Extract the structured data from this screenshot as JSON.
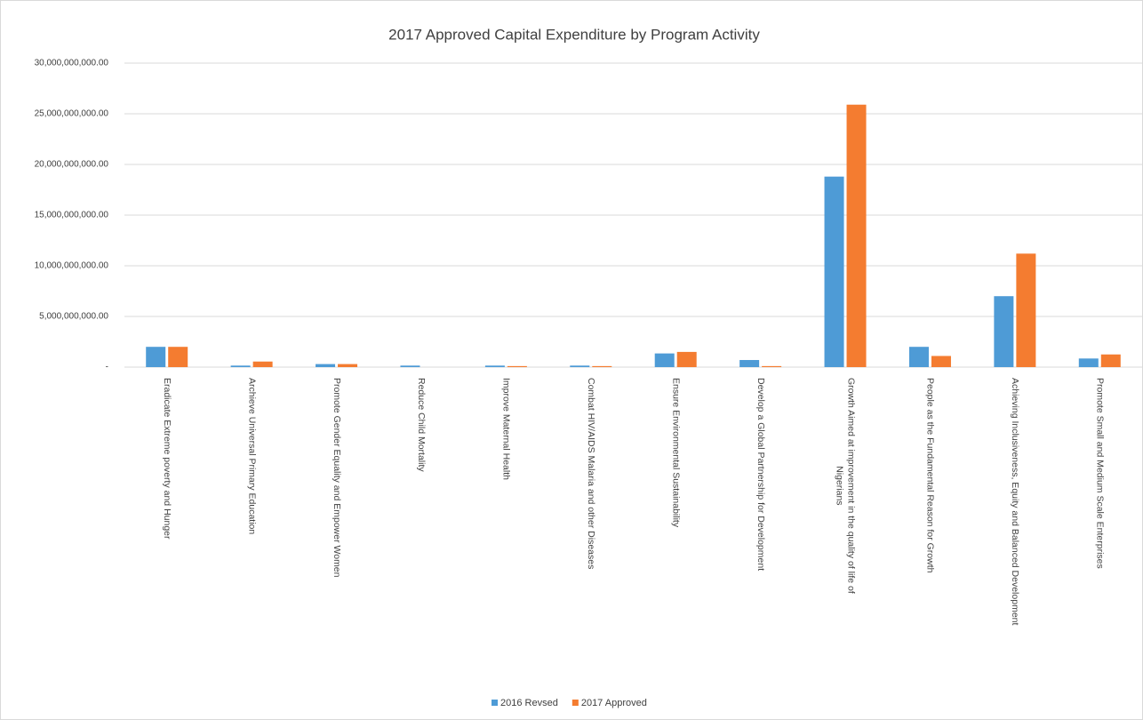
{
  "chart_data": {
    "type": "bar",
    "title": "2017 Approved Capital Expenditure by Program Activity",
    "categories": [
      "Eradicate Extreme poverty and Hunger",
      "Archieve Universal Primary  Education",
      "Promote Gender Equality and Empower Women",
      "Reduce Child Mortality",
      "Improve Maternal Health",
      "Combat HIV/AIDS Malaria and other Diseases",
      "Ensure Environmental Sustainability",
      "Develop a Global Partnership for Development",
      "Growth Aimed at improvement in the quality of life of Nigerians",
      "People as the Fundamental Reason for Growth",
      "Achieving Inclusiveness, Equity and Balanced Development",
      "Promote Small and Medium Scale Enterprises"
    ],
    "series": [
      {
        "name": "2016 Revsed",
        "color": "#4e9bd6",
        "values": [
          2000000000,
          150000000,
          300000000,
          150000000,
          150000000,
          150000000,
          1350000000,
          700000000,
          18800000000,
          2000000000,
          7000000000,
          850000000
        ]
      },
      {
        "name": "2017 Approved",
        "color": "#f47c30",
        "values": [
          2000000000,
          550000000,
          300000000,
          0,
          100000000,
          100000000,
          1500000000,
          100000000,
          25900000000,
          1100000000,
          11200000000,
          1250000000
        ]
      }
    ],
    "ylim": [
      0,
      30000000000
    ],
    "yticks": [
      {
        "value": 0,
        "label": "-"
      },
      {
        "value": 5000000000,
        "label": "5,000,000,000.00"
      },
      {
        "value": 10000000000,
        "label": "10,000,000,000.00"
      },
      {
        "value": 15000000000,
        "label": "15,000,000,000.00"
      },
      {
        "value": 20000000000,
        "label": "20,000,000,000.00"
      },
      {
        "value": 25000000000,
        "label": "25,000,000,000.00"
      },
      {
        "value": 30000000000,
        "label": "30,000,000,000.00"
      }
    ],
    "grid": true,
    "legend": "bottom"
  }
}
